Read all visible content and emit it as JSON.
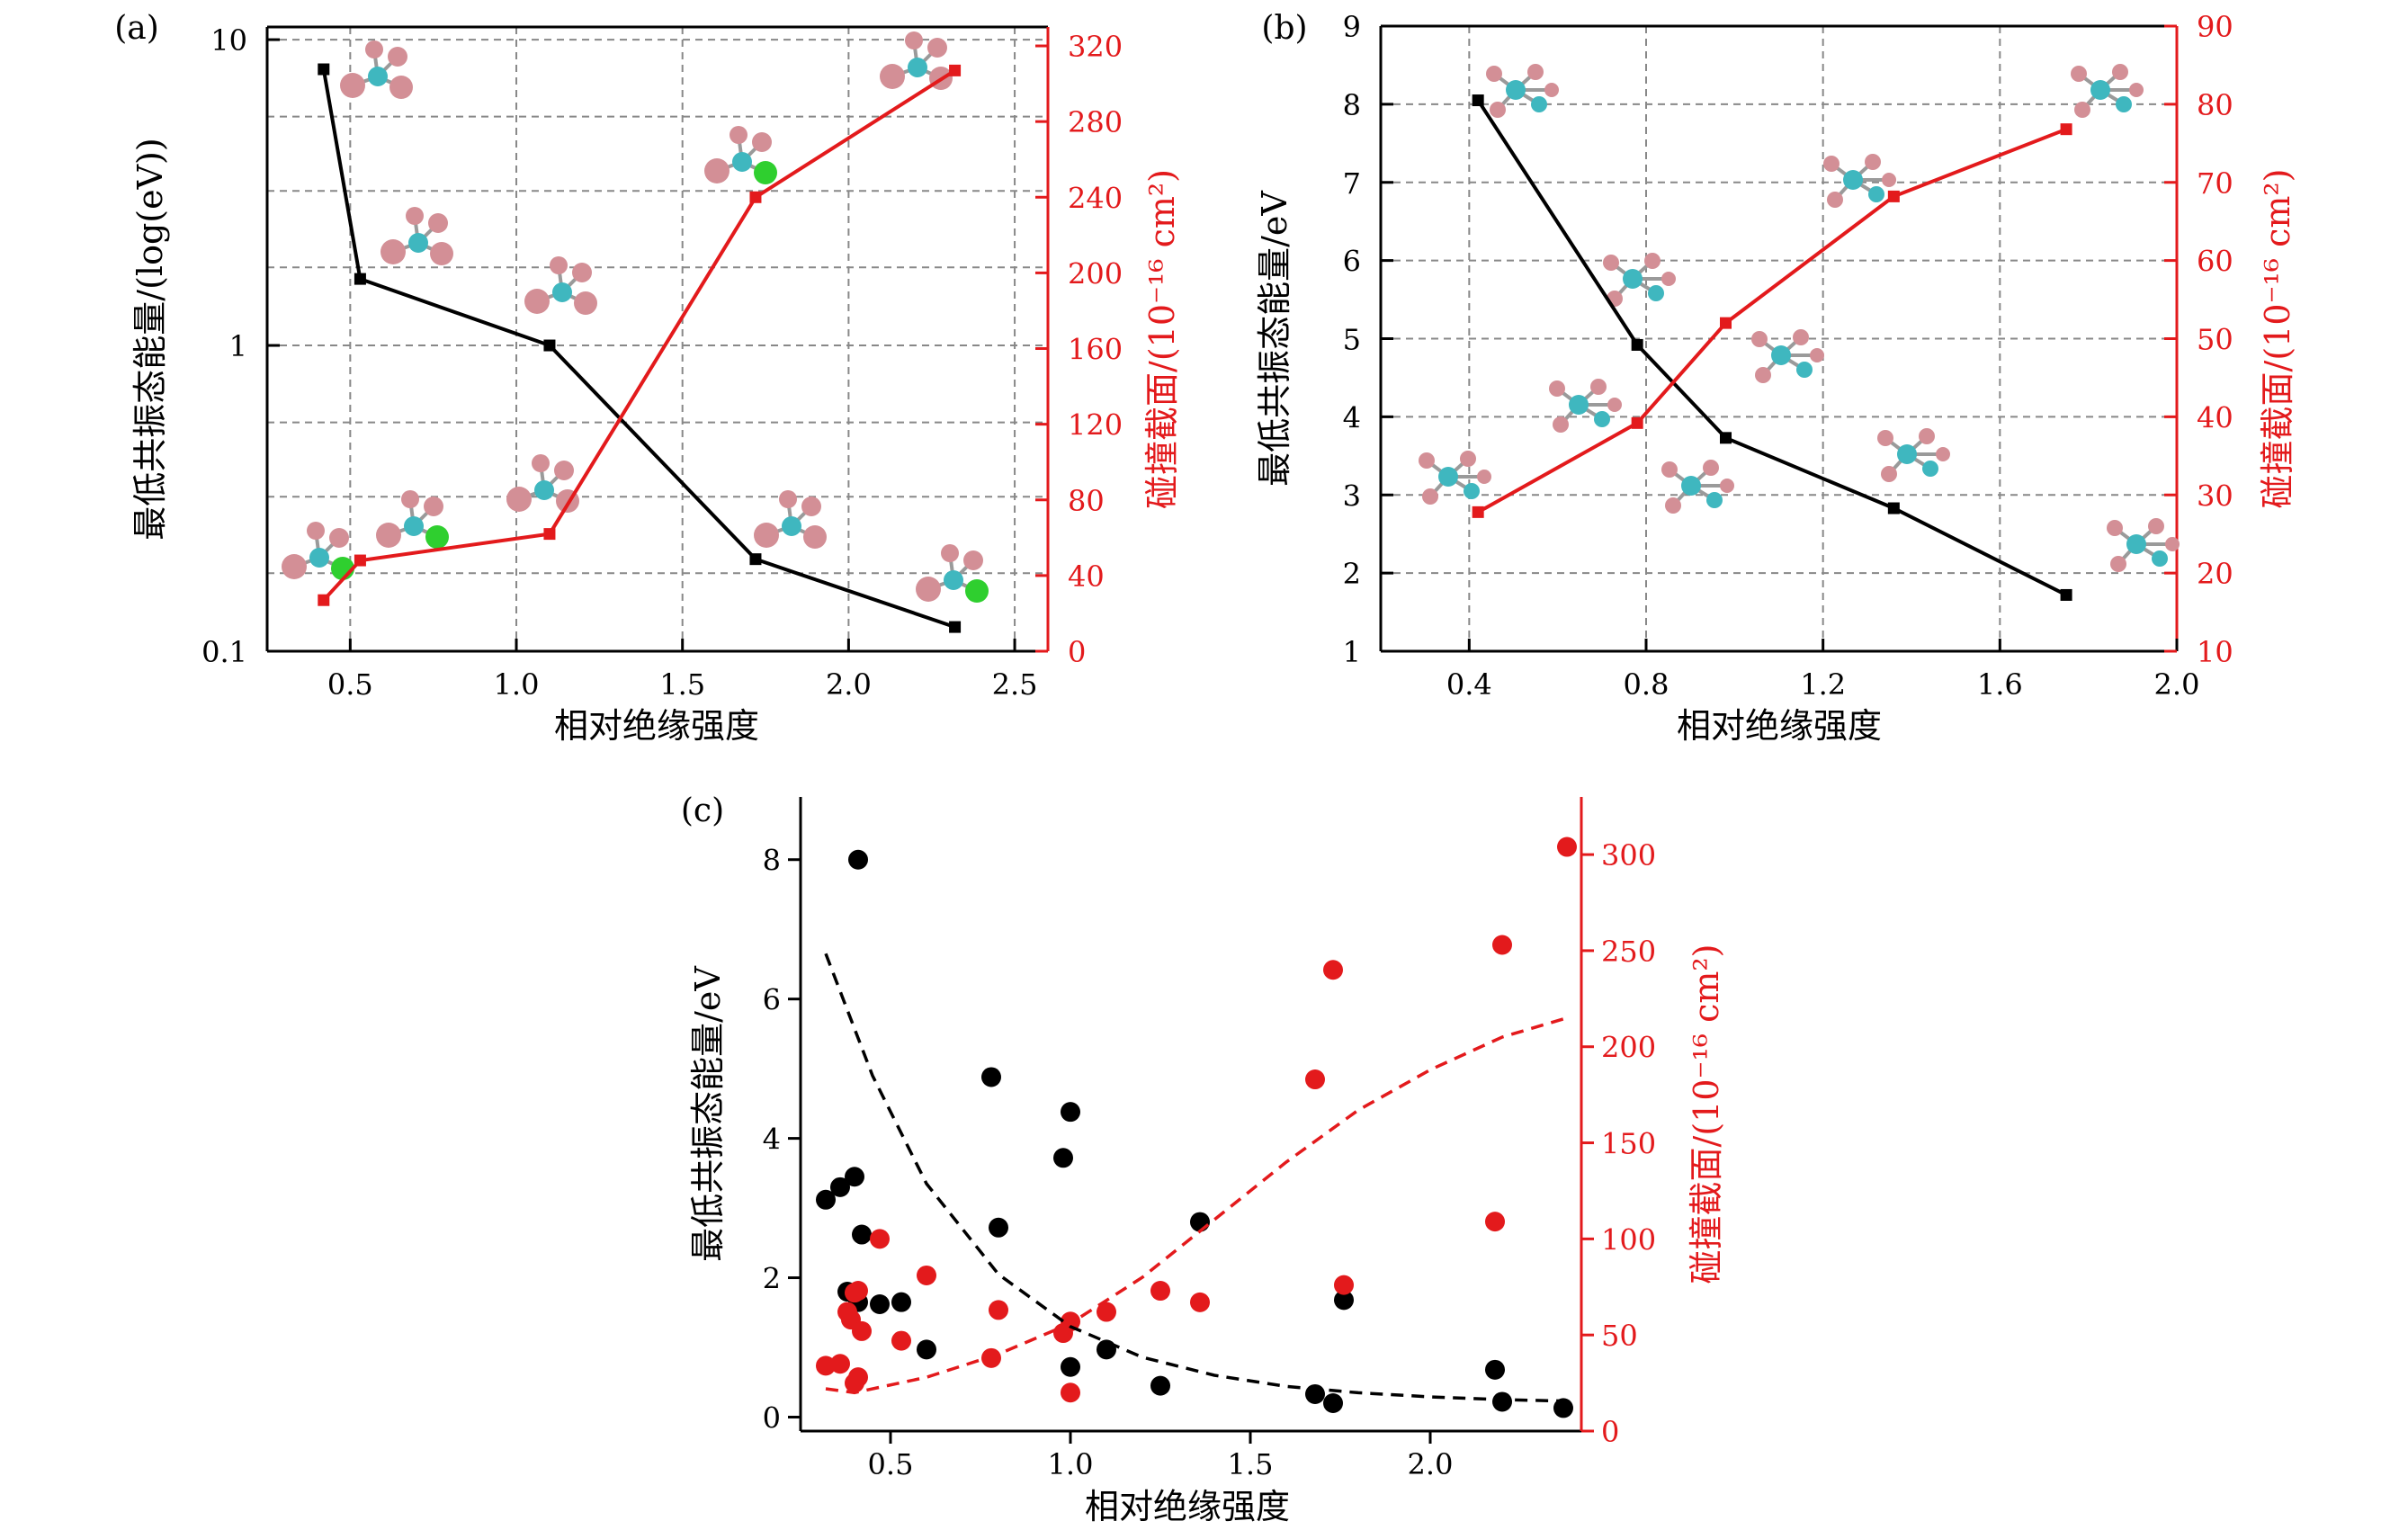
{
  "figure": {
    "background": "#ffffff",
    "black_color": "#000000",
    "red_color": "#e31a1c"
  },
  "chart_data": [
    {
      "panel": "(a)",
      "type": "line",
      "xlabel": "相对绝缘强度",
      "ylabel_left": "最低共振态能量/(log(eV))",
      "ylabel_right": "碰撞截面/(10⁻¹⁶ cm²)",
      "xlim": [
        0.25,
        2.6
      ],
      "xticks": [
        0.5,
        1.0,
        1.5,
        2.0,
        2.5
      ],
      "xtick_labels": [
        "0.5",
        "1.0",
        "1.5",
        "2.0",
        "2.5"
      ],
      "left_scale": "log",
      "ylim_left": [
        0.1,
        11
      ],
      "yticks_left": [
        0.1,
        1,
        10
      ],
      "ytick_labels_left": [
        "0.1",
        "1",
        "10"
      ],
      "ylim_right": [
        0,
        330
      ],
      "yticks_right": [
        0,
        40,
        80,
        120,
        160,
        200,
        240,
        280,
        320
      ],
      "ytick_labels_right": [
        "0",
        "40",
        "80",
        "120",
        "160",
        "200",
        "240",
        "280",
        "320"
      ],
      "grid": true,
      "series": [
        {
          "axis": "left",
          "color": "black",
          "x": [
            0.42,
            0.53,
            1.1,
            1.72,
            2.32
          ],
          "y": [
            8.0,
            1.65,
            1.0,
            0.2,
            0.12
          ]
        },
        {
          "axis": "right",
          "color": "red",
          "x": [
            0.42,
            0.53,
            1.1,
            1.72,
            2.32
          ],
          "y": [
            27,
            48,
            62,
            240,
            307
          ]
        }
      ],
      "molecule_icons": [
        "halomethane-icon",
        "halomethane-icon",
        "halomethane-icon",
        "halomethane-icon",
        "halomethane-icon",
        "halomethane-icon",
        "halomethane-icon",
        "halomethane-icon",
        "halomethane-icon",
        "halomethane-icon"
      ]
    },
    {
      "panel": "(b)",
      "type": "line",
      "xlabel": "相对绝缘强度",
      "ylabel_left": "最低共振态能量/eV",
      "ylabel_right": "碰撞截面/(10⁻¹⁶ cm²)",
      "xlim": [
        0.2,
        2.0
      ],
      "xticks": [
        0.4,
        0.8,
        1.2,
        1.6,
        2.0
      ],
      "xtick_labels": [
        "0.4",
        "0.8",
        "1.2",
        "1.6",
        "2.0"
      ],
      "ylim_left": [
        1,
        9
      ],
      "yticks_left": [
        1,
        2,
        3,
        4,
        5,
        6,
        7,
        8,
        9
      ],
      "ytick_labels_left": [
        "1",
        "2",
        "3",
        "4",
        "5",
        "6",
        "7",
        "8",
        "9"
      ],
      "ylim_right": [
        10,
        90
      ],
      "yticks_right": [
        10,
        20,
        30,
        40,
        50,
        60,
        70,
        80,
        90
      ],
      "ytick_labels_right": [
        "10",
        "20",
        "30",
        "40",
        "50",
        "60",
        "70",
        "80",
        "90"
      ],
      "grid": true,
      "series": [
        {
          "axis": "left",
          "color": "black",
          "x": [
            0.42,
            0.78,
            0.98,
            1.36,
            1.75
          ],
          "y": [
            8.05,
            4.92,
            3.73,
            2.83,
            1.72
          ]
        },
        {
          "axis": "right",
          "color": "red",
          "x": [
            0.42,
            0.78,
            0.98,
            1.36,
            1.75
          ],
          "y": [
            27.8,
            39.2,
            52,
            68.2,
            76.8
          ]
        }
      ],
      "molecule_icons": [
        "alkane-icon",
        "alkane-icon",
        "alkane-icon",
        "alkane-icon",
        "alkane-icon",
        "alkane-icon",
        "alkane-icon",
        "alkane-icon",
        "alkane-icon",
        "alkane-icon"
      ]
    },
    {
      "panel": "(c)",
      "type": "scatter",
      "xlabel": "相对绝缘强度",
      "ylabel_left": "最低共振态能量/eV",
      "ylabel_right": "碰撞截面/(10⁻¹⁶ cm²)",
      "xlim": [
        0.25,
        2.42
      ],
      "xticks": [
        0.5,
        1.0,
        1.5,
        2.0
      ],
      "xtick_labels": [
        "0.5",
        "1.0",
        "1.5",
        "2.0"
      ],
      "ylim_left": [
        -0.2,
        8.9
      ],
      "yticks_left": [
        0,
        2,
        4,
        6,
        8
      ],
      "ytick_labels_left": [
        "0",
        "2",
        "4",
        "6",
        "8"
      ],
      "ylim_right": [
        0,
        330
      ],
      "yticks_right": [
        0,
        50,
        100,
        150,
        200,
        250,
        300
      ],
      "ytick_labels_right": [
        "0",
        "50",
        "100",
        "150",
        "200",
        "250",
        "300"
      ],
      "grid": false,
      "series": [
        {
          "axis": "left",
          "color": "black",
          "points": [
            [
              0.32,
              3.12
            ],
            [
              0.36,
              3.3
            ],
            [
              0.38,
              1.8
            ],
            [
              0.4,
              3.45
            ],
            [
              0.41,
              8.0
            ],
            [
              0.42,
              2.62
            ],
            [
              0.41,
              1.65
            ],
            [
              0.47,
              1.62
            ],
            [
              0.53,
              1.65
            ],
            [
              0.6,
              0.97
            ],
            [
              0.78,
              4.88
            ],
            [
              0.8,
              2.72
            ],
            [
              0.98,
              3.72
            ],
            [
              1.0,
              4.38
            ],
            [
              1.0,
              0.72
            ],
            [
              1.1,
              0.97
            ],
            [
              1.25,
              0.45
            ],
            [
              1.36,
              2.8
            ],
            [
              1.68,
              0.33
            ],
            [
              1.73,
              0.2
            ],
            [
              1.76,
              1.68
            ],
            [
              2.18,
              0.68
            ],
            [
              2.2,
              0.22
            ],
            [
              2.37,
              0.13
            ]
          ]
        },
        {
          "axis": "right",
          "color": "red",
          "points": [
            [
              0.32,
              34
            ],
            [
              0.36,
              35
            ],
            [
              0.38,
              62
            ],
            [
              0.39,
              58
            ],
            [
              0.4,
              72
            ],
            [
              0.41,
              73
            ],
            [
              0.4,
              25
            ],
            [
              0.41,
              28
            ],
            [
              0.42,
              52
            ],
            [
              0.47,
              100
            ],
            [
              0.53,
              47
            ],
            [
              0.6,
              81
            ],
            [
              0.78,
              38
            ],
            [
              0.8,
              63
            ],
            [
              0.98,
              51
            ],
            [
              1.0,
              20
            ],
            [
              1.0,
              57
            ],
            [
              1.1,
              62
            ],
            [
              1.25,
              73
            ],
            [
              1.36,
              67
            ],
            [
              1.68,
              183
            ],
            [
              1.73,
              240
            ],
            [
              1.76,
              76
            ],
            [
              2.18,
              109
            ],
            [
              2.2,
              253
            ],
            [
              2.38,
              304
            ]
          ]
        },
        {
          "axis": "left",
          "color": "black",
          "style": "dashed-fit",
          "x": [
            0.32,
            0.45,
            0.6,
            0.8,
            1.0,
            1.2,
            1.4,
            1.6,
            1.8,
            2.0,
            2.2,
            2.38
          ],
          "y": [
            6.65,
            4.9,
            3.35,
            2.05,
            1.3,
            0.86,
            0.6,
            0.44,
            0.35,
            0.29,
            0.25,
            0.23
          ]
        },
        {
          "axis": "right",
          "color": "red",
          "style": "dashed-fit",
          "x": [
            0.32,
            0.4,
            0.6,
            0.8,
            1.0,
            1.2,
            1.4,
            1.6,
            1.8,
            2.0,
            2.2,
            2.38
          ],
          "y": [
            22,
            20,
            28,
            40,
            56,
            80,
            110,
            140,
            167,
            188,
            205,
            215
          ]
        }
      ]
    }
  ]
}
